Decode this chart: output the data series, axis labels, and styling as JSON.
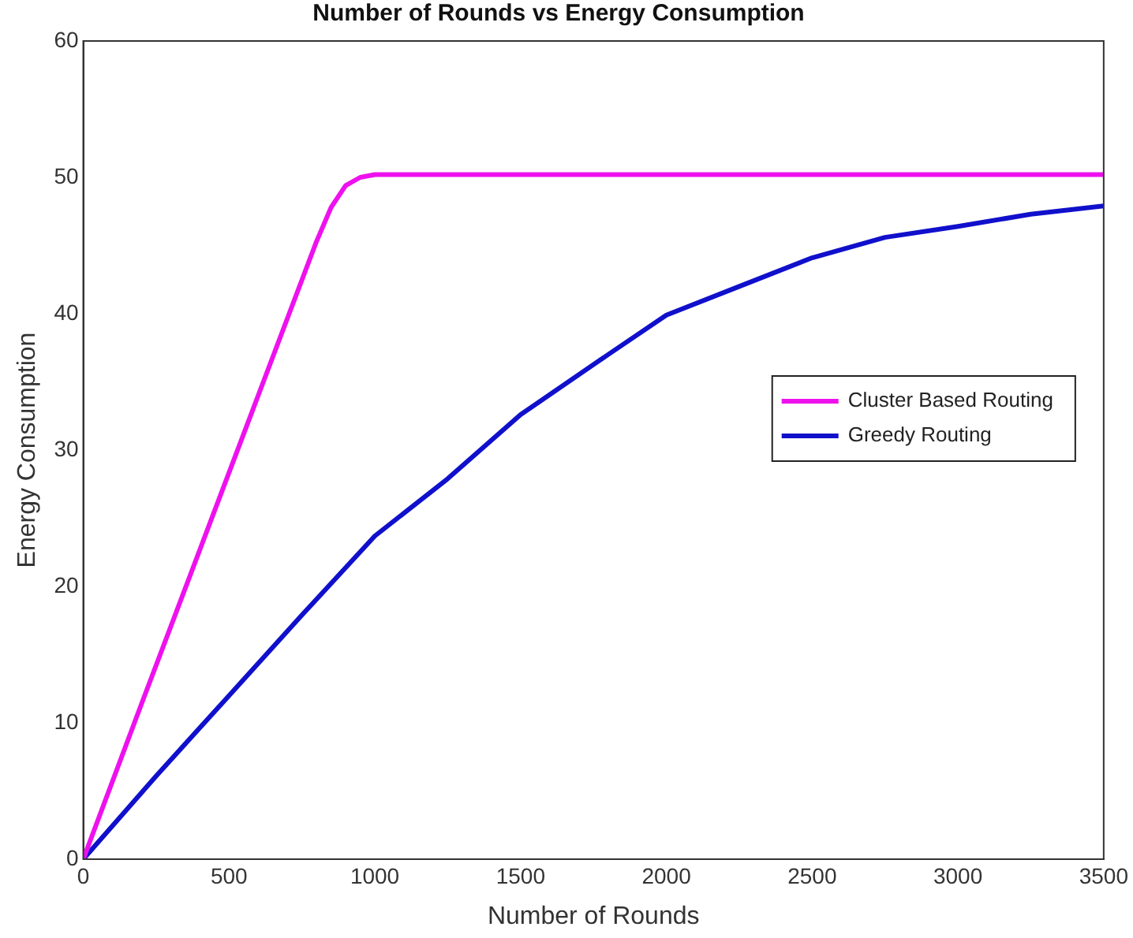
{
  "chart_data": {
    "type": "line",
    "title": "Number of Rounds vs Energy Consumption",
    "xlabel": "Number of Rounds",
    "ylabel": "Energy Consumption",
    "series": [
      {
        "name": "Cluster Based Routing",
        "color": "#ee11ee",
        "x": [
          0,
          200,
          400,
          600,
          800,
          850,
          900,
          950,
          1000,
          1500,
          2000,
          2500,
          3000,
          3500
        ],
        "values": [
          0,
          11.4,
          22.7,
          34,
          45.3,
          47.8,
          49.4,
          50.0,
          50.2,
          50.2,
          50.2,
          50.2,
          50.2,
          50.2
        ]
      },
      {
        "name": "Greedy Routing",
        "color": "#1010cc",
        "x": [
          0,
          250,
          500,
          750,
          1000,
          1250,
          1500,
          1800,
          2000,
          2250,
          2500,
          2750,
          3000,
          3250,
          3500
        ],
        "values": [
          0,
          6.1,
          12,
          17.9,
          23.7,
          27.9,
          32.6,
          37,
          39.9,
          42,
          44.1,
          45.6,
          46.4,
          47.3,
          47.9
        ]
      }
    ],
    "xlim": [
      0,
      3500
    ],
    "xticks": [
      0,
      500,
      1000,
      1500,
      2000,
      2500,
      3000,
      3500
    ],
    "ylim": [
      0,
      60
    ],
    "yticks": [
      0,
      10,
      20,
      30,
      40,
      50,
      60
    ],
    "grid": false,
    "legend": "right",
    "marker": "none",
    "line_style": "solid"
  }
}
